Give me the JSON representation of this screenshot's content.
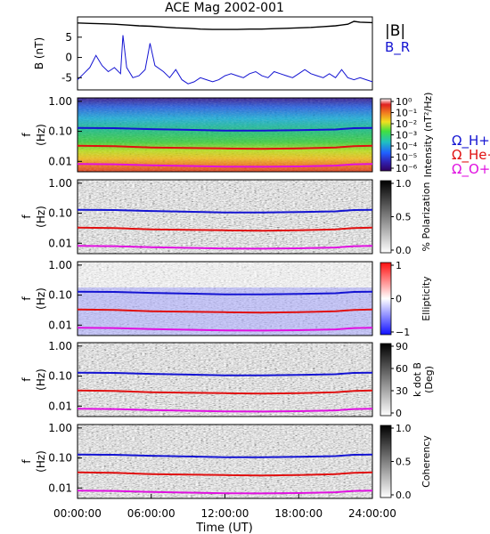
{
  "title": "ACE Mag 2002-001",
  "xaxis": {
    "label": "Time (UT)",
    "ticks": [
      "00:00:00",
      "06:00:00",
      "12:00:00",
      "18:00:00",
      "24:00:00"
    ],
    "range_hours": [
      0,
      24
    ]
  },
  "colors": {
    "blue": "#1414d2",
    "red": "#e01010",
    "magenta": "#e010e0",
    "black": "#000000"
  },
  "chart_data": [
    {
      "type": "line",
      "panel": "magnetic-field",
      "ylabel": "B (nT)",
      "yticks": [
        "5",
        "0",
        "-5"
      ],
      "ylim": [
        -8,
        10
      ],
      "legend": [
        {
          "label": "|B|",
          "color": "#000000"
        },
        {
          "label": "B_R",
          "color": "#1414d2"
        }
      ],
      "series": [
        {
          "name": "|B|",
          "x_hours": [
            0,
            1,
            2,
            3,
            4,
            5,
            6,
            7,
            8,
            9,
            10,
            11,
            12,
            13,
            14,
            15,
            16,
            17,
            18,
            19,
            20,
            21,
            22,
            22.5,
            23,
            24
          ],
          "values": [
            8.5,
            8.4,
            8.3,
            8.2,
            8.0,
            7.8,
            7.7,
            7.5,
            7.3,
            7.2,
            7.0,
            6.9,
            6.9,
            6.9,
            7.0,
            7.0,
            7.1,
            7.2,
            7.3,
            7.4,
            7.6,
            7.8,
            8.2,
            8.9,
            8.7,
            8.6
          ]
        },
        {
          "name": "B_R",
          "x_hours": [
            0,
            0.5,
            1,
            1.5,
            2,
            2.5,
            3,
            3.5,
            3.7,
            4,
            4.5,
            5,
            5.5,
            5.9,
            6.3,
            7,
            7.5,
            8,
            8.5,
            9,
            9.5,
            10,
            10.5,
            11,
            11.5,
            12,
            12.5,
            13,
            13.5,
            14,
            14.5,
            15,
            15.5,
            16,
            16.5,
            17,
            17.5,
            18,
            18.5,
            19,
            19.5,
            20,
            20.5,
            21,
            21.5,
            22,
            22.5,
            23,
            23.5,
            24
          ],
          "values": [
            -5.5,
            -4.0,
            -2.5,
            0.5,
            -2.0,
            -3.5,
            -2.5,
            -4.0,
            5.5,
            -2.5,
            -5.0,
            -4.5,
            -3.0,
            3.5,
            -2.0,
            -3.5,
            -5.0,
            -3.0,
            -5.5,
            -6.5,
            -6.0,
            -5.0,
            -5.5,
            -6.0,
            -5.5,
            -4.5,
            -4.0,
            -4.5,
            -5.0,
            -4.0,
            -3.5,
            -4.5,
            -5.0,
            -3.5,
            -4.0,
            -4.5,
            -5.0,
            -4.0,
            -3.0,
            -4.0,
            -4.5,
            -5.0,
            -4.0,
            -5.0,
            -3.0,
            -5.0,
            -5.5,
            -5.0,
            -5.5,
            -6.0
          ]
        }
      ]
    },
    {
      "type": "heatmap",
      "panel": "intensity",
      "ylabel": "f (Hz)",
      "yticks": [
        "1.00",
        "0.10",
        "0.01"
      ],
      "y_scale": "log",
      "ylim": [
        0.004,
        1.3
      ],
      "colorbar": {
        "label": "Intensity (nT²/Hz)",
        "ticks": [
          "10⁰",
          "10⁻¹",
          "10⁻²",
          "10⁻³",
          "10⁻⁴",
          "10⁻⁵",
          "10⁻⁶"
        ],
        "colors": [
          "#ffffff",
          "#e02020",
          "#f08020",
          "#f0e020",
          "#40e040",
          "#20c0c0",
          "#2060ff",
          "#3020b0",
          "#300060"
        ]
      },
      "legend": [
        {
          "label": "Ω_H+",
          "color": "#1414d2"
        },
        {
          "label": "Ω_He+",
          "color": "#e01010"
        },
        {
          "label": "Ω_O+",
          "color": "#e010e0"
        }
      ]
    },
    {
      "type": "heatmap",
      "panel": "polarization",
      "ylabel": "f (Hz)",
      "yticks": [
        "1.00",
        "0.10",
        "0.01"
      ],
      "y_scale": "log",
      "colorbar": {
        "label": "% Polarization",
        "ticks": [
          "1.0",
          "0.5",
          "0.0"
        ],
        "scale": "gray"
      }
    },
    {
      "type": "heatmap",
      "panel": "ellipticity",
      "ylabel": "f (Hz)",
      "yticks": [
        "1.00",
        "0.10",
        "0.01"
      ],
      "y_scale": "log",
      "colorbar": {
        "label": "Ellipticity",
        "ticks": [
          "1",
          "0",
          "−1"
        ],
        "scale": "red-white-blue"
      }
    },
    {
      "type": "heatmap",
      "panel": "k-dot-b",
      "ylabel": "f (Hz)",
      "yticks": [
        "1.00",
        "0.10",
        "0.01"
      ],
      "y_scale": "log",
      "colorbar": {
        "label_line1": "k dot B",
        "label_line2": "(Deg)",
        "ticks": [
          "90",
          "60",
          "30",
          "0"
        ],
        "scale": "gray"
      }
    },
    {
      "type": "heatmap",
      "panel": "coherency",
      "ylabel": "f (Hz)",
      "yticks": [
        "1.00",
        "0.10",
        "0.01"
      ],
      "y_scale": "log",
      "colorbar": {
        "label": "Coherency",
        "ticks": [
          "1.0",
          "0.5",
          "0.0"
        ],
        "scale": "gray"
      }
    },
    {
      "type": "line",
      "panel": "gyrofrequency-overlays",
      "y_scale": "log",
      "series": [
        {
          "name": "Ω_H+",
          "x_hours": [
            0,
            3,
            6,
            9,
            12,
            15,
            18,
            21,
            22.5,
            24
          ],
          "values": [
            0.13,
            0.128,
            0.118,
            0.112,
            0.106,
            0.106,
            0.11,
            0.115,
            0.128,
            0.13
          ]
        },
        {
          "name": "Ω_He+",
          "x_hours": [
            0,
            3,
            6,
            9,
            12,
            15,
            18,
            21,
            22.5,
            24
          ],
          "values": [
            0.033,
            0.032,
            0.029,
            0.028,
            0.027,
            0.026,
            0.027,
            0.029,
            0.032,
            0.033
          ]
        },
        {
          "name": "Ω_O+",
          "x_hours": [
            0,
            3,
            6,
            9,
            12,
            15,
            18,
            21,
            22.5,
            24
          ],
          "values": [
            0.0082,
            0.008,
            0.0074,
            0.007,
            0.0067,
            0.0066,
            0.0068,
            0.0072,
            0.008,
            0.0082
          ]
        }
      ]
    }
  ]
}
